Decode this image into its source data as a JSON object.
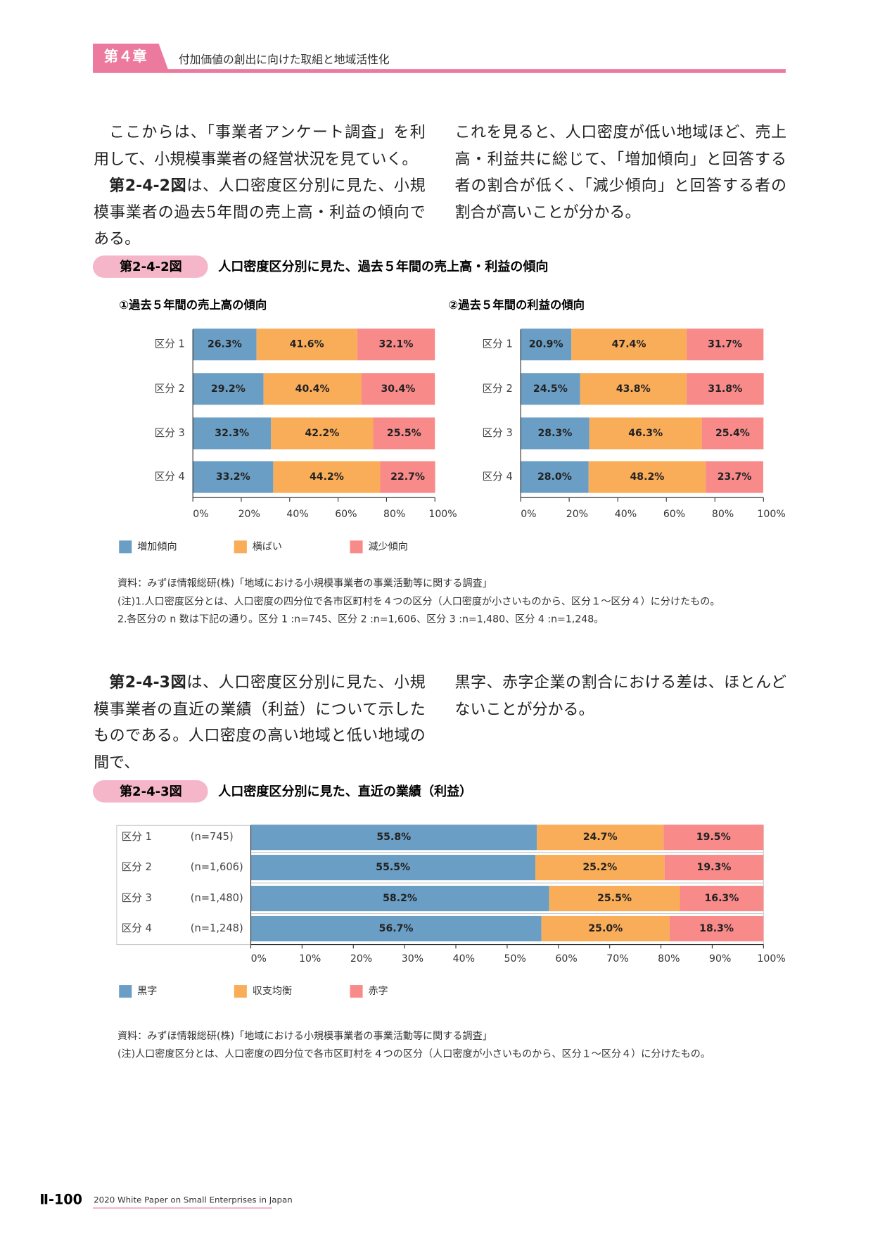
{
  "header": {
    "chapter": "第４章",
    "title": "付加価値の創出に向けた取組と地域活性化"
  },
  "section1": {
    "left": [
      {
        "text": "ここからは、「事業者アンケート調査」を利用して、小規模事業者の経営状況を見ていく。"
      },
      {
        "bold": "第2-4-2図",
        "text": "は、人口密度区分別に見た、小規模事業者の過去5年間の売上高・利益の傾向である。"
      }
    ],
    "right": [
      {
        "text": "これを見ると、人口密度が低い地域ほど、売上高・利益共に総じて、「増加傾向」と回答する者の割合が低く、「減少傾向」と回答する者の割合が高いことが分かる。"
      }
    ]
  },
  "figure1": {
    "label": "第2-4-2図",
    "title": "人口密度区分別に見た、過去５年間の売上高・利益の傾向",
    "notes": [
      "資料：みずほ情報総研(株)「地域における小規模事業者の事業活動等に関する調査」",
      "(注)1.人口密度区分とは、人口密度の四分位で各市区町村を４つの区分（人口密度が小さいものから、区分１～区分４）に分けたもの。",
      "2.各区分の n 数は下記の通り。区分 1 :n=745、区分 2 :n=1,606、区分 3 :n=1,480、区分 4 :n=1,248。"
    ]
  },
  "section2": {
    "left": [
      {
        "bold": "第2-4-3図",
        "text": "は、人口密度区分別に見た、小規模事業者の直近の業績（利益）について示したものである。人口密度の高い地域と低い地域の間で、"
      }
    ],
    "right": [
      {
        "text": "黒字、赤字企業の割合における差は、ほとんどないことが分かる。"
      }
    ]
  },
  "figure2": {
    "label": "第2-4-3図",
    "title": "人口密度区分別に見た、直近の業績（利益）",
    "notes": [
      "資料：みずほ情報総研(株)「地域における小規模事業者の事業活動等に関する調査」",
      "(注)人口密度区分とは、人口密度の四分位で各市区町村を４つの区分（人口密度が小さいものから、区分１～区分４）に分けたもの。"
    ]
  },
  "chart_data": [
    {
      "type": "bar",
      "orientation": "horizontal",
      "stacked": true,
      "title": "①過去５年間の売上高の傾向",
      "categories": [
        "区分 1",
        "区分 2",
        "区分 3",
        "区分 4"
      ],
      "series": [
        {
          "name": "増加傾向",
          "color": "#6a9ec4",
          "values": [
            26.3,
            29.2,
            32.3,
            33.2
          ],
          "value_labels": [
            "26.3%",
            "29.2%",
            "32.3%",
            "33.2%"
          ]
        },
        {
          "name": "横ばい",
          "color": "#f9ad58",
          "values": [
            41.6,
            40.4,
            42.2,
            44.2
          ],
          "value_labels": [
            "41.6%",
            "40.4%",
            "42.2%",
            "44.2%"
          ]
        },
        {
          "name": "減少傾向",
          "color": "#f88a8a",
          "values": [
            32.1,
            30.4,
            25.5,
            22.7
          ],
          "value_labels": [
            "32.1%",
            "30.4%",
            "25.5%",
            "22.7%"
          ]
        }
      ],
      "xlim": [
        0,
        100
      ],
      "xticks": [
        {
          "value": 0,
          "label": "0%"
        },
        {
          "value": 20,
          "label": "20%"
        },
        {
          "value": 40,
          "label": "40%"
        },
        {
          "value": 60,
          "label": "60%"
        },
        {
          "value": 80,
          "label": "80%"
        },
        {
          "value": 100,
          "label": "100%"
        }
      ],
      "legend": "bottom-left"
    },
    {
      "type": "bar",
      "orientation": "horizontal",
      "stacked": true,
      "title": "②過去５年間の利益の傾向",
      "categories": [
        "区分 1",
        "区分 2",
        "区分 3",
        "区分 4"
      ],
      "series": [
        {
          "color": "#6a9ec4",
          "values": [
            20.9,
            24.5,
            28.3,
            28.0
          ],
          "value_labels": [
            "20.9%",
            "24.5%",
            "28.3%",
            "28.0%"
          ]
        },
        {
          "color": "#f9ad58",
          "values": [
            47.4,
            43.8,
            46.3,
            48.2
          ],
          "value_labels": [
            "47.4%",
            "43.8%",
            "46.3%",
            "48.2%"
          ]
        },
        {
          "color": "#f88a8a",
          "values": [
            31.7,
            31.8,
            25.4,
            23.7
          ],
          "value_labels": [
            "31.7%",
            "31.8%",
            "25.4%",
            "23.7%"
          ]
        }
      ],
      "xlim": [
        0,
        100
      ],
      "xticks": [
        {
          "value": 0,
          "label": "0%"
        },
        {
          "value": 20,
          "label": "20%"
        },
        {
          "value": 40,
          "label": "40%"
        },
        {
          "value": 60,
          "label": "60%"
        },
        {
          "value": 80,
          "label": "80%"
        },
        {
          "value": 100,
          "label": "100%"
        }
      ]
    },
    {
      "type": "bar",
      "orientation": "horizontal",
      "stacked": true,
      "categories": [
        "区分 1",
        "区分 2",
        "区分 3",
        "区分 4"
      ],
      "n_labels": [
        "(n=745)",
        "(n=1,606)",
        "(n=1,480)",
        "(n=1,248)"
      ],
      "series": [
        {
          "name": "黒字",
          "color": "#6a9ec4",
          "values": [
            55.8,
            55.5,
            58.2,
            56.7
          ],
          "value_labels": [
            "55.8%",
            "55.5%",
            "58.2%",
            "56.7%"
          ]
        },
        {
          "name": "収支均衡",
          "color": "#f9ad58",
          "values": [
            24.7,
            25.2,
            25.5,
            25.0
          ],
          "value_labels": [
            "24.7%",
            "25.2%",
            "25.5%",
            "25.0%"
          ]
        },
        {
          "name": "赤字",
          "color": "#f88a8a",
          "values": [
            19.5,
            19.3,
            16.3,
            18.3
          ],
          "value_labels": [
            "19.5%",
            "19.3%",
            "16.3%",
            "18.3%"
          ]
        }
      ],
      "xlim": [
        0,
        100
      ],
      "xticks": [
        {
          "value": 0,
          "label": "0%"
        },
        {
          "value": 10,
          "label": "10%"
        },
        {
          "value": 20,
          "label": "20%"
        },
        {
          "value": 30,
          "label": "30%"
        },
        {
          "value": 40,
          "label": "40%"
        },
        {
          "value": 50,
          "label": "50%"
        },
        {
          "value": 60,
          "label": "60%"
        },
        {
          "value": 70,
          "label": "70%"
        },
        {
          "value": 80,
          "label": "80%"
        },
        {
          "value": 90,
          "label": "90%"
        },
        {
          "value": 100,
          "label": "100%"
        }
      ],
      "legend": "bottom-left"
    }
  ],
  "footer": {
    "page": "Ⅱ-100",
    "publication": "2020 White Paper on Small Enterprises in Japan"
  }
}
